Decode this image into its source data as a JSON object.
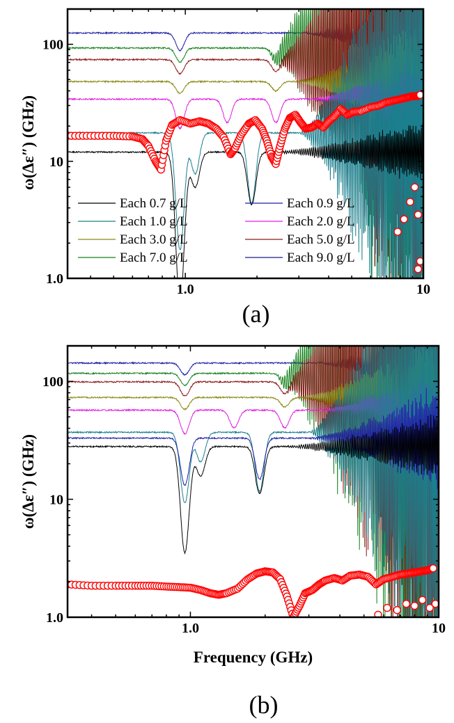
{
  "colors": {
    "each_0_7": "#000000",
    "each_0_9": "#1f1fa8",
    "each_1_0": "#1a7f8e",
    "each_2_0": "#e31ae3",
    "each_3_0": "#8a8a14",
    "each_5_0": "#8b1a1a",
    "each_7_0": "#14801a",
    "each_9_0": "#1a1a8b",
    "red_marker": "#ff0000"
  },
  "chart_data": [
    {
      "panel_label": "(a)",
      "type": "line",
      "xscale": "log",
      "yscale": "log",
      "xlim": [
        0.32,
        10
      ],
      "ylim": [
        1,
        200
      ],
      "xticks": [
        {
          "v": 1,
          "label": "1.0"
        },
        {
          "v": 10,
          "label": "10"
        }
      ],
      "yticks": [
        {
          "v": 1,
          "label": "1.0"
        },
        {
          "v": 10,
          "label": "10"
        },
        {
          "v": 100,
          "label": "100"
        }
      ],
      "ylabel": "ω(Δε″) (GHz)",
      "xlabel": "",
      "legend": {
        "position": "lower-center",
        "entries": [
          {
            "text": "Each 0.7 g/L",
            "color_key": "each_0_7"
          },
          {
            "text": "Each 0.9 g/L",
            "color_key": "each_0_9"
          },
          {
            "text": "Each 1.0 g/L",
            "color_key": "each_1_0"
          },
          {
            "text": "Each 2.0 g/L",
            "color_key": "each_2_0"
          },
          {
            "text": "Each 3.0 g/L",
            "color_key": "each_3_0"
          },
          {
            "text": "Each 5.0 g/L",
            "color_key": "each_5_0"
          },
          {
            "text": "Each 7.0 g/L",
            "color_key": "each_7_0"
          },
          {
            "text": "Each 9.0 g/L",
            "color_key": "each_9_0"
          }
        ]
      },
      "series": [
        {
          "color_key": "each_0_9",
          "base": 125,
          "dips": [
            [
              0.95,
              0.15
            ]
          ],
          "onset": 3.0,
          "osc_end": 0.4
        },
        {
          "color_key": "each_7_0",
          "base": 93,
          "dips": [
            [
              0.95,
              0.12
            ],
            [
              2.4,
              0.1
            ]
          ],
          "onset": 2.2,
          "osc_end": 3.5
        },
        {
          "color_key": "each_5_0",
          "base": 74,
          "dips": [
            [
              0.95,
              0.12
            ],
            [
              2.4,
              0.1
            ]
          ],
          "onset": 2.4,
          "osc_end": 3.5
        },
        {
          "color_key": "each_3_0",
          "base": 48,
          "dips": [
            [
              0.95,
              0.1
            ],
            [
              2.4,
              0.08
            ]
          ],
          "onset": 2.8,
          "osc_end": 0.6
        },
        {
          "color_key": "each_2_0",
          "base": 34,
          "dips": [
            [
              0.95,
              0.25
            ],
            [
              1.5,
              0.2
            ],
            [
              2.4,
              0.2
            ]
          ],
          "onset": 3.3,
          "osc_end": 0.4
        },
        {
          "color_key": "each_1_0",
          "base": 17.5,
          "dips": [
            [
              0.95,
              1.0
            ],
            [
              1.1,
              0.35
            ],
            [
              1.9,
              0.6
            ]
          ],
          "onset": 3.0,
          "osc_end": 3.0
        },
        {
          "color_key": "each_0_7",
          "base": 12,
          "dips": [
            [
              0.95,
              1.3
            ],
            [
              1.1,
              0.3
            ],
            [
              1.9,
              0.45
            ]
          ],
          "onset": 2.3,
          "osc_end": 0.3
        }
      ],
      "markers": {
        "color_key": "red_marker",
        "points": [
          [
            0.32,
            16.5
          ],
          [
            0.4,
            16.5
          ],
          [
            0.5,
            16.5
          ],
          [
            0.6,
            16.3
          ],
          [
            0.66,
            15.5
          ],
          [
            0.7,
            13.5
          ],
          [
            0.75,
            10
          ],
          [
            0.79,
            8.5
          ],
          [
            0.83,
            15
          ],
          [
            0.88,
            20.5
          ],
          [
            0.95,
            22.5
          ],
          [
            1.05,
            21
          ],
          [
            1.15,
            22
          ],
          [
            1.25,
            21
          ],
          [
            1.35,
            19
          ],
          [
            1.45,
            16
          ],
          [
            1.55,
            11.5
          ],
          [
            1.62,
            13
          ],
          [
            1.72,
            17
          ],
          [
            1.85,
            21
          ],
          [
            1.97,
            22.5
          ],
          [
            2.1,
            19
          ],
          [
            2.2,
            15
          ],
          [
            2.3,
            11
          ],
          [
            2.4,
            9.5
          ],
          [
            2.5,
            13.5
          ],
          [
            2.62,
            19
          ],
          [
            2.75,
            23.5
          ],
          [
            2.9,
            25
          ],
          [
            3.05,
            21.5
          ],
          [
            3.2,
            19
          ],
          [
            3.4,
            19.5
          ],
          [
            3.6,
            21
          ],
          [
            3.8,
            19.5
          ],
          [
            4.0,
            22
          ],
          [
            4.25,
            24.5
          ],
          [
            4.5,
            28
          ],
          [
            4.8,
            25
          ],
          [
            5.1,
            26.5
          ],
          [
            5.5,
            27
          ],
          [
            6.0,
            29
          ],
          [
            6.5,
            30
          ],
          [
            7.0,
            32
          ],
          [
            7.5,
            33
          ],
          [
            8.0,
            34
          ],
          [
            8.5,
            35
          ],
          [
            9.0,
            36
          ],
          [
            9.4,
            36
          ],
          [
            9.7,
            37
          ]
        ],
        "low_points": [
          [
            7.8,
            2.5
          ],
          [
            8.3,
            3.2
          ],
          [
            8.8,
            4.5
          ],
          [
            9.2,
            6
          ],
          [
            9.5,
            3.5
          ],
          [
            9.7,
            1.4
          ],
          [
            9.5,
            1.2
          ]
        ]
      }
    },
    {
      "panel_label": "(b)",
      "type": "line",
      "xscale": "log",
      "yscale": "log",
      "xlim": [
        0.32,
        10
      ],
      "ylim": [
        1,
        200
      ],
      "xticks": [
        {
          "v": 1,
          "label": "1.0"
        },
        {
          "v": 10,
          "label": "10"
        }
      ],
      "yticks": [
        {
          "v": 1,
          "label": "1.0"
        },
        {
          "v": 10,
          "label": "10"
        },
        {
          "v": 100,
          "label": "100"
        }
      ],
      "ylabel": "ω(Δε″) (GHz)",
      "xlabel": "Frequency (GHz)",
      "series": [
        {
          "color_key": "each_0_9",
          "base": 143,
          "dips": [
            [
              0.95,
              0.1
            ]
          ],
          "onset": 3.2,
          "osc_end": 0.4
        },
        {
          "color_key": "each_7_0",
          "base": 117,
          "dips": [
            [
              0.95,
              0.1
            ],
            [
              2.4,
              0.08
            ]
          ],
          "onset": 2.2,
          "osc_end": 4.0
        },
        {
          "color_key": "each_5_0",
          "base": 99,
          "dips": [
            [
              0.95,
              0.12
            ],
            [
              2.4,
              0.1
            ]
          ],
          "onset": 2.4,
          "osc_end": 4.0
        },
        {
          "color_key": "each_3_0",
          "base": 73,
          "dips": [
            [
              0.95,
              0.1
            ],
            [
              2.4,
              0.08
            ]
          ],
          "onset": 2.7,
          "osc_end": 0.6
        },
        {
          "color_key": "each_2_0",
          "base": 57,
          "dips": [
            [
              0.95,
              0.2
            ],
            [
              1.5,
              0.15
            ],
            [
              2.4,
              0.15
            ]
          ],
          "onset": 3.3,
          "osc_end": 0.4
        },
        {
          "color_key": "each_1_0",
          "base": 37,
          "dips": [
            [
              0.95,
              0.6
            ],
            [
              1.1,
              0.25
            ],
            [
              1.9,
              0.5
            ]
          ],
          "onset": 3.0,
          "osc_end": 3.0
        },
        {
          "color_key": "each_0_9",
          "base": 33,
          "dips": [
            [
              0.95,
              0.4
            ],
            [
              1.9,
              0.35
            ]
          ],
          "onset": 3.0,
          "osc_end": 0.5
        },
        {
          "color_key": "each_0_7",
          "base": 28,
          "dips": [
            [
              0.95,
              0.9
            ],
            [
              1.1,
              0.25
            ],
            [
              1.9,
              0.4
            ]
          ],
          "onset": 2.3,
          "osc_end": 0.3
        }
      ],
      "markers": {
        "color_key": "red_marker",
        "points": [
          [
            0.32,
            1.9
          ],
          [
            0.4,
            1.85
          ],
          [
            0.5,
            1.85
          ],
          [
            0.6,
            1.85
          ],
          [
            0.7,
            1.85
          ],
          [
            0.8,
            1.82
          ],
          [
            0.9,
            1.8
          ],
          [
            1.0,
            1.78
          ],
          [
            1.1,
            1.7
          ],
          [
            1.2,
            1.6
          ],
          [
            1.3,
            1.55
          ],
          [
            1.4,
            1.6
          ],
          [
            1.55,
            1.75
          ],
          [
            1.7,
            2.1
          ],
          [
            1.85,
            2.35
          ],
          [
            2.0,
            2.45
          ],
          [
            2.15,
            2.4
          ],
          [
            2.3,
            2.1
          ],
          [
            2.45,
            1.5
          ],
          [
            2.6,
            1.0
          ],
          [
            2.75,
            1.25
          ],
          [
            2.9,
            1.6
          ],
          [
            3.1,
            1.7
          ],
          [
            3.3,
            1.9
          ],
          [
            3.5,
            2.05
          ],
          [
            3.8,
            2.15
          ],
          [
            4.1,
            2.05
          ],
          [
            4.4,
            2.25
          ],
          [
            4.8,
            2.3
          ],
          [
            5.2,
            2.2
          ],
          [
            5.6,
            1.9
          ],
          [
            6.0,
            2.1
          ],
          [
            6.5,
            2.2
          ],
          [
            7.0,
            2.3
          ],
          [
            7.5,
            2.35
          ],
          [
            8.0,
            2.4
          ],
          [
            8.5,
            2.45
          ],
          [
            9.0,
            2.5
          ],
          [
            9.5,
            2.6
          ]
        ],
        "low_points": [
          [
            5.7,
            1.05
          ],
          [
            6.2,
            1.2
          ],
          [
            6.8,
            1.15
          ],
          [
            7.4,
            1.3
          ],
          [
            8.0,
            1.25
          ],
          [
            8.6,
            1.4
          ],
          [
            9.2,
            1.2
          ],
          [
            9.7,
            1.3
          ]
        ]
      }
    }
  ]
}
